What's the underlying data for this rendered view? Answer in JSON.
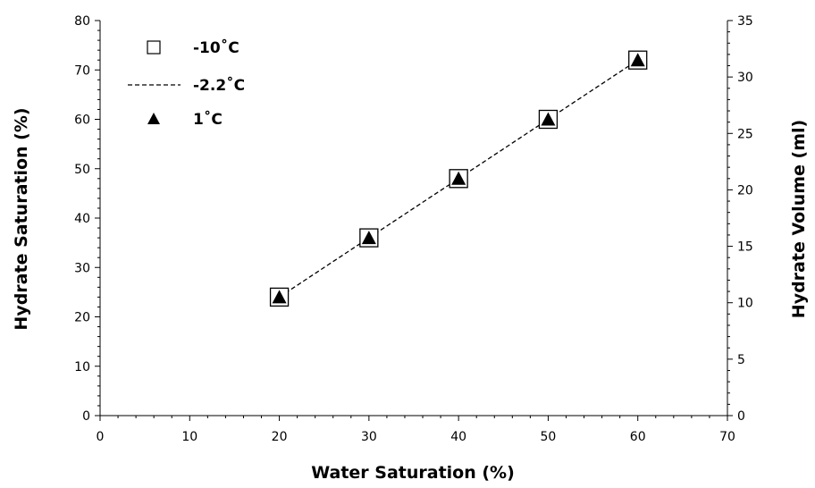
{
  "chart_data": {
    "type": "scatter",
    "xlabel": "Water Saturation (%)",
    "ylabel": "Hydrate Saturation (%)",
    "y2label": "Hydrate Volume (ml)",
    "xlim": [
      0,
      70
    ],
    "ylim": [
      0,
      80
    ],
    "y2lim": [
      0,
      35
    ],
    "xticks": [
      "0",
      "10",
      "20",
      "30",
      "40",
      "50",
      "60",
      "70"
    ],
    "yticks": [
      "0",
      "10",
      "20",
      "30",
      "40",
      "50",
      "60",
      "70",
      "80"
    ],
    "y2ticks": [
      "0",
      "5",
      "10",
      "15",
      "20",
      "25",
      "30",
      "35"
    ],
    "grid": false,
    "legend_position": "top-left",
    "series": [
      {
        "name": "-10˚C",
        "marker": "open-square",
        "line": "none",
        "x": [
          20,
          30,
          40,
          50,
          60
        ],
        "y": [
          24,
          36,
          48,
          60,
          72
        ]
      },
      {
        "name": "-2.2˚C",
        "marker": "none",
        "line": "dashed",
        "x": [
          20,
          30,
          40,
          50,
          60
        ],
        "y": [
          24,
          36,
          48,
          60,
          72
        ]
      },
      {
        "name": "1˚C",
        "marker": "filled-triangle",
        "line": "none",
        "x": [
          20,
          30,
          40,
          50,
          60
        ],
        "y": [
          24,
          36,
          48,
          60,
          72
        ]
      }
    ]
  }
}
